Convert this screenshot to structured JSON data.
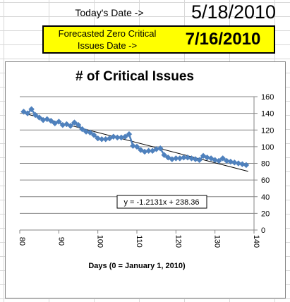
{
  "header": {
    "today_label": "Today's Date ->",
    "today_value": "5/18/2010",
    "forecast_label_line1": "Forecasted Zero Critical",
    "forecast_label_line2": "Issues Date ->",
    "forecast_value": "7/16/2010"
  },
  "colors": {
    "highlight": "#ffff00",
    "series": "#4f81bd",
    "trendline": "#000000"
  },
  "chart_data": {
    "type": "scatter",
    "title": "# of Critical Issues",
    "xlabel": "Days (0 = January 1, 2010)",
    "ylabel": "",
    "xlim": [
      80,
      140
    ],
    "ylim": [
      0,
      160
    ],
    "x_ticks": [
      "80",
      "90",
      "100",
      "110",
      "120",
      "130",
      "140"
    ],
    "y_ticks": [
      "0",
      "20",
      "40",
      "60",
      "80",
      "100",
      "120",
      "140",
      "160"
    ],
    "grid": "horizontal",
    "series": [
      {
        "marker": "diamond",
        "line": true,
        "x": [
          81,
          82,
          83,
          84,
          85,
          86,
          87,
          88,
          89,
          90,
          91,
          92,
          93,
          94,
          95,
          96,
          97,
          98,
          99,
          100,
          101,
          102,
          103,
          104,
          105,
          106,
          107,
          108,
          109,
          110,
          111,
          112,
          113,
          114,
          115,
          116,
          117,
          118,
          119,
          120,
          121,
          122,
          123,
          124,
          125,
          126,
          127,
          128,
          129,
          130,
          131,
          132,
          133,
          134,
          135,
          136,
          137,
          138
        ],
        "y": [
          142,
          140,
          145,
          138,
          135,
          132,
          133,
          131,
          128,
          130,
          126,
          127,
          125,
          129,
          126,
          121,
          118,
          117,
          114,
          110,
          109,
          109,
          110,
          112,
          111,
          111,
          112,
          115,
          101,
          100,
          96,
          94,
          95,
          95,
          97,
          98,
          90,
          87,
          85,
          86,
          86,
          87,
          87,
          86,
          85,
          84,
          89,
          87,
          86,
          84,
          83,
          86,
          83,
          82,
          81,
          80,
          79,
          78
        ]
      }
    ],
    "trendline": {
      "slope": -1.2131,
      "intercept": 238.36,
      "equation": "y = -1.2131x + 238.36"
    }
  }
}
